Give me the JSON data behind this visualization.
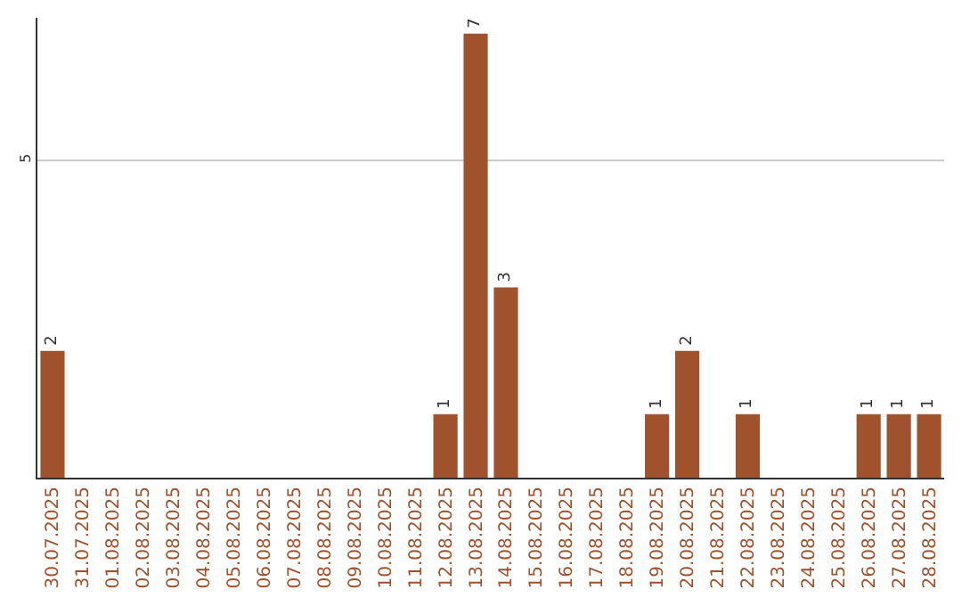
{
  "chart_data": {
    "type": "bar",
    "categories": [
      "30.07.2025",
      "31.07.2025",
      "01.08.2025",
      "02.08.2025",
      "03.08.2025",
      "04.08.2025",
      "05.08.2025",
      "06.08.2025",
      "07.08.2025",
      "08.08.2025",
      "09.08.2025",
      "10.08.2025",
      "11.08.2025",
      "12.08.2025",
      "13.08.2025",
      "14.08.2025",
      "15.08.2025",
      "16.08.2025",
      "17.08.2025",
      "18.08.2025",
      "19.08.2025",
      "20.08.2025",
      "21.08.2025",
      "22.08.2025",
      "23.08.2025",
      "24.08.2025",
      "25.08.2025",
      "26.08.2025",
      "27.08.2025",
      "28.08.2025"
    ],
    "values": [
      2,
      0,
      0,
      0,
      0,
      0,
      0,
      0,
      0,
      0,
      0,
      0,
      0,
      1,
      7,
      3,
      0,
      0,
      0,
      0,
      1,
      2,
      0,
      1,
      0,
      0,
      0,
      1,
      1,
      1
    ],
    "value_labels": [
      "2",
      null,
      null,
      null,
      null,
      null,
      null,
      null,
      null,
      null,
      null,
      null,
      null,
      "1",
      "7",
      "3",
      null,
      null,
      null,
      null,
      "1",
      "2",
      null,
      "1",
      null,
      null,
      null,
      "1",
      "1",
      "1"
    ],
    "color": "#a0522d",
    "ylim": [
      0,
      7.25
    ],
    "yticks": [
      5
    ],
    "grid": "y",
    "legend": false
  }
}
